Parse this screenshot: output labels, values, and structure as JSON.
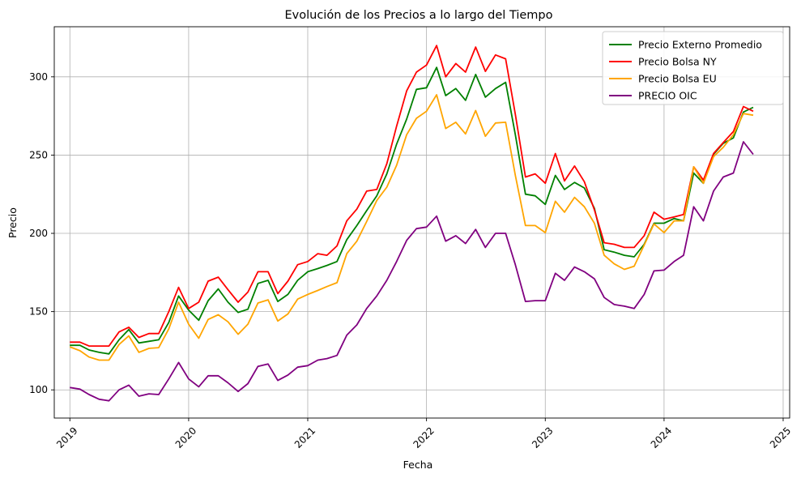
{
  "chart_data": {
    "type": "line",
    "title": "Evolución de los Precios a lo largo del Tiempo",
    "xlabel": "Fecha",
    "ylabel": "Precio",
    "xlim": [
      "2018-11-14",
      "2025-01-21"
    ],
    "ylim": [
      82,
      332
    ],
    "x_ticks": [
      "2019",
      "2020",
      "2021",
      "2022",
      "2023",
      "2024",
      "2025"
    ],
    "y_ticks": [
      100,
      150,
      200,
      250,
      300
    ],
    "grid": true,
    "legend_position": "upper right",
    "x": [
      "2019-01",
      "2019-02",
      "2019-03",
      "2019-04",
      "2019-05",
      "2019-06",
      "2019-07",
      "2019-08",
      "2019-09",
      "2019-10",
      "2019-11",
      "2019-12",
      "2020-01",
      "2020-02",
      "2020-03",
      "2020-04",
      "2020-05",
      "2020-06",
      "2020-07",
      "2020-08",
      "2020-09",
      "2020-10",
      "2020-11",
      "2020-12",
      "2021-01",
      "2021-02",
      "2021-03",
      "2021-04",
      "2021-05",
      "2021-06",
      "2021-07",
      "2021-08",
      "2021-09",
      "2021-10",
      "2021-11",
      "2021-12",
      "2022-01",
      "2022-02",
      "2022-03",
      "2022-04",
      "2022-05",
      "2022-06",
      "2022-07",
      "2022-08",
      "2022-09",
      "2022-10",
      "2022-11",
      "2022-12",
      "2023-01",
      "2023-02",
      "2023-03",
      "2023-04",
      "2023-05",
      "2023-06",
      "2023-07",
      "2023-08",
      "2023-09",
      "2023-10",
      "2023-11",
      "2023-12",
      "2024-01",
      "2024-02",
      "2024-03",
      "2024-04",
      "2024-05",
      "2024-06",
      "2024-07",
      "2024-08",
      "2024-09",
      "2024-10"
    ],
    "series": [
      {
        "name": "Precio Externo Promedio",
        "color": "#008000",
        "values": [
          128.5,
          128.5,
          125.5,
          124,
          123,
          132,
          138.5,
          130,
          131,
          132,
          143,
          160,
          151,
          144.5,
          157,
          164.5,
          156,
          149.5,
          151.5,
          168,
          170,
          156.5,
          161,
          170,
          175.5,
          177.5,
          179.5,
          182,
          196,
          205,
          214.5,
          224,
          238,
          257,
          273,
          292,
          293,
          306,
          288,
          292.5,
          285,
          301.5,
          287,
          292.5,
          296.5,
          263,
          225,
          224,
          218.5,
          237,
          228,
          232.5,
          229,
          216,
          189.5,
          188,
          186,
          185,
          193,
          206.5,
          206.5,
          209.5,
          208,
          238.5,
          232,
          250.5,
          257.5,
          261,
          277.5,
          280.5
        ]
      },
      {
        "name": "Precio Bolsa NY",
        "color": "#ff0000",
        "values": [
          130.5,
          130.5,
          128,
          128,
          128,
          137,
          140,
          133.5,
          136,
          136,
          150,
          165.5,
          152,
          156,
          169.5,
          172,
          164,
          156,
          162.5,
          175.5,
          175.5,
          161.5,
          169.5,
          180,
          182,
          187,
          186,
          192,
          208,
          215.5,
          227,
          228,
          244.5,
          268.5,
          291,
          303,
          307.5,
          320,
          300,
          308.5,
          303,
          319,
          303.5,
          314,
          311.5,
          276,
          236,
          238,
          232,
          251,
          233.5,
          243,
          233,
          215,
          194,
          193,
          191,
          191,
          198.5,
          213.5,
          209,
          210.5,
          212,
          242.5,
          234,
          251,
          258,
          265,
          281,
          278
        ]
      },
      {
        "name": "Precio Bolsa EU",
        "color": "#ffa500",
        "values": [
          127.5,
          125,
          121,
          119,
          119,
          129,
          134.5,
          124,
          126.5,
          127,
          139,
          156,
          142,
          133,
          145,
          148,
          143.5,
          135.5,
          142,
          155.5,
          157.5,
          144,
          148.5,
          158,
          161,
          163.5,
          166,
          168.5,
          187,
          195,
          207.5,
          221,
          229.5,
          243.5,
          263,
          273.5,
          278,
          288.5,
          267,
          271,
          263.5,
          278.5,
          262,
          270.5,
          271,
          237,
          205,
          205,
          200.5,
          220.5,
          213.5,
          223,
          217,
          206.5,
          186,
          180.5,
          177,
          179,
          192.5,
          206,
          200.5,
          208,
          208,
          242.5,
          232,
          249,
          255,
          263,
          276.5,
          275.5
        ]
      },
      {
        "name": "PRECIO OIC",
        "color": "#800080",
        "values": [
          101.5,
          100.5,
          97,
          94,
          93,
          100,
          103,
          96,
          97.5,
          97,
          107,
          117.5,
          107,
          102,
          109,
          109,
          104.5,
          99,
          104,
          115,
          116.5,
          106,
          109.5,
          114.5,
          115.5,
          119,
          120,
          122,
          135,
          141.5,
          152,
          160,
          170,
          182,
          195.5,
          203,
          204,
          211,
          195,
          198.5,
          193.5,
          202.5,
          191,
          200,
          200,
          180,
          156.5,
          157,
          157,
          174.5,
          170,
          178.5,
          175.5,
          171,
          159,
          154.5,
          153.5,
          152,
          161,
          176,
          176.5,
          182,
          186,
          217,
          208,
          227,
          236,
          238.5,
          258.5,
          250.5
        ]
      }
    ]
  }
}
